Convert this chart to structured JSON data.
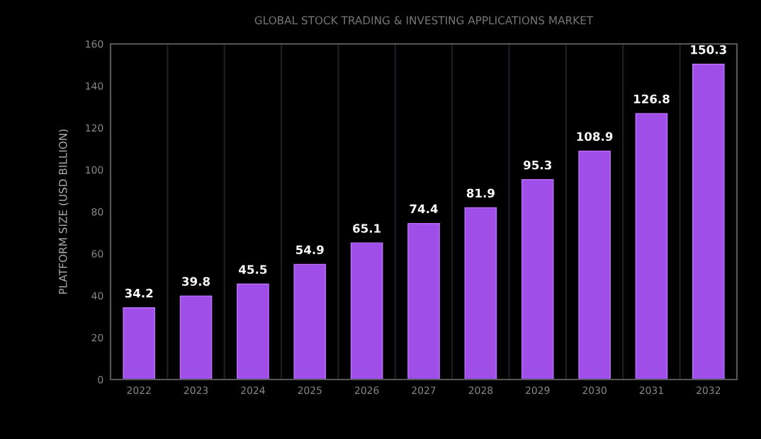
{
  "chart_data": {
    "type": "bar",
    "title": "GLOBAL STOCK TRADING & INVESTING APPLICATIONS MARKET",
    "ylabel": "PLATFORM SIZE (USD BILLION)",
    "categories": [
      "2022",
      "2023",
      "2024",
      "2025",
      "2026",
      "2027",
      "2028",
      "2029",
      "2030",
      "2031",
      "2032"
    ],
    "values": [
      34.2,
      39.8,
      45.5,
      54.9,
      65.1,
      74.4,
      81.9,
      95.3,
      108.9,
      126.8,
      150.3
    ],
    "color": "#a04ee8",
    "ylim": [
      0,
      160
    ],
    "yticks": [
      0,
      20,
      40,
      60,
      80,
      100,
      120,
      140,
      160
    ],
    "data_labels": true,
    "grid": false
  }
}
